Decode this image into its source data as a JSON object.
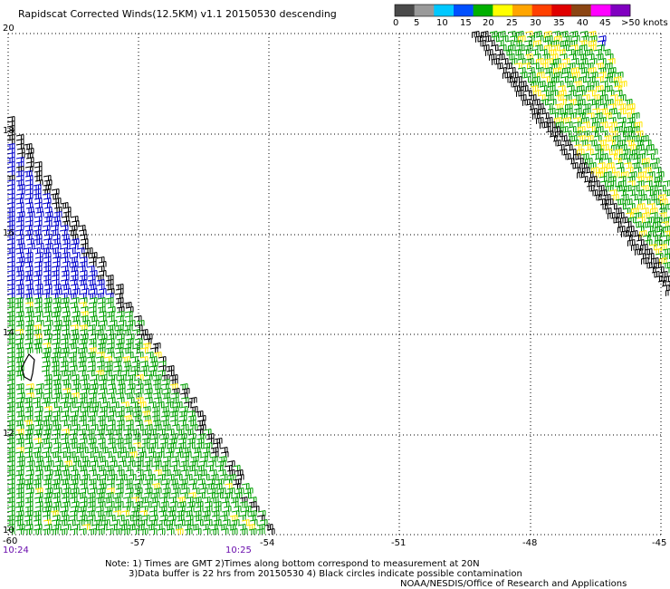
{
  "map": {
    "title": "Rapidscat Corrected Winds(12.5KM) v1.1 20150530 descending",
    "lat_labels": [
      "20",
      "18",
      "16",
      "14",
      "12",
      "10"
    ],
    "lon_labels": [
      "-60",
      "-57",
      "-54",
      "-51",
      "-48",
      "-45"
    ],
    "time_labels": [
      "10:24",
      "10:25"
    ],
    "notes": [
      "Note: 1) Times are GMT 2)Times along bottom correspond to measurement at 20N",
      "3)Data buffer is 22 hrs from 20150530 4) Black circles indicate possible contamination",
      "NOAA/NESDIS/Office of Research and Applications"
    ]
  },
  "legend": {
    "labels": [
      "0",
      "5",
      "10",
      "15",
      "20",
      "25",
      "30",
      "35",
      "40",
      "45",
      ">50 knots"
    ],
    "colors": [
      "#4a4a4a",
      "#9a9a9a",
      "#00c8ff",
      "#0050ff",
      "#00b000",
      "#ffff00",
      "#ffa500",
      "#ff4000",
      "#e00000",
      "#8b4513",
      "#ff00ff",
      "#8000c0"
    ]
  },
  "wind_colors": {
    "calm": "#000000",
    "light": "#0000cc",
    "moderate": "#00a000",
    "fresh": "#ffe600"
  }
}
